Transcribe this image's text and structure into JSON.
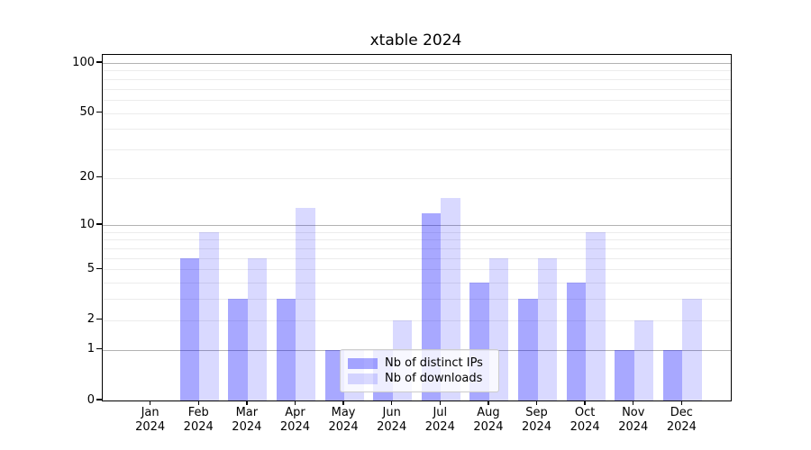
{
  "chart_data": {
    "type": "bar",
    "title": "xtable 2024",
    "categories": [
      "Jan",
      "Feb",
      "Mar",
      "Apr",
      "May",
      "Jun",
      "Jul",
      "Aug",
      "Sep",
      "Oct",
      "Nov",
      "Dec"
    ],
    "category_sub_label": "2024",
    "series": [
      {
        "name": "Nb of distinct IPs",
        "color": "rgba(0,0,255,0.34)",
        "values": [
          0,
          6,
          3,
          3,
          1,
          1,
          12,
          4,
          3,
          4,
          1,
          1
        ]
      },
      {
        "name": "Nb of downloads",
        "color": "rgba(0,0,255,0.15)",
        "values": [
          0,
          9,
          6,
          13,
          1,
          2,
          15,
          6,
          6,
          9,
          2,
          3
        ]
      }
    ],
    "xlabel": "",
    "ylabel": "",
    "y_scale": "log1p",
    "y_max": 100,
    "y_ticks": [
      0,
      1,
      2,
      5,
      10,
      20,
      50,
      100
    ],
    "grid_major": [
      1,
      10,
      100
    ],
    "grid_minor": [
      2,
      3,
      4,
      5,
      6,
      7,
      8,
      9,
      20,
      30,
      40,
      50,
      60,
      70,
      80,
      90
    ],
    "grid": "on",
    "legend_position": "lower center"
  },
  "colors": {
    "background": "#ffffff",
    "axis": "#000000",
    "grid_major": "#b2b2b2",
    "grid_minor": "#ececec",
    "legend_border": "#cccccc"
  }
}
